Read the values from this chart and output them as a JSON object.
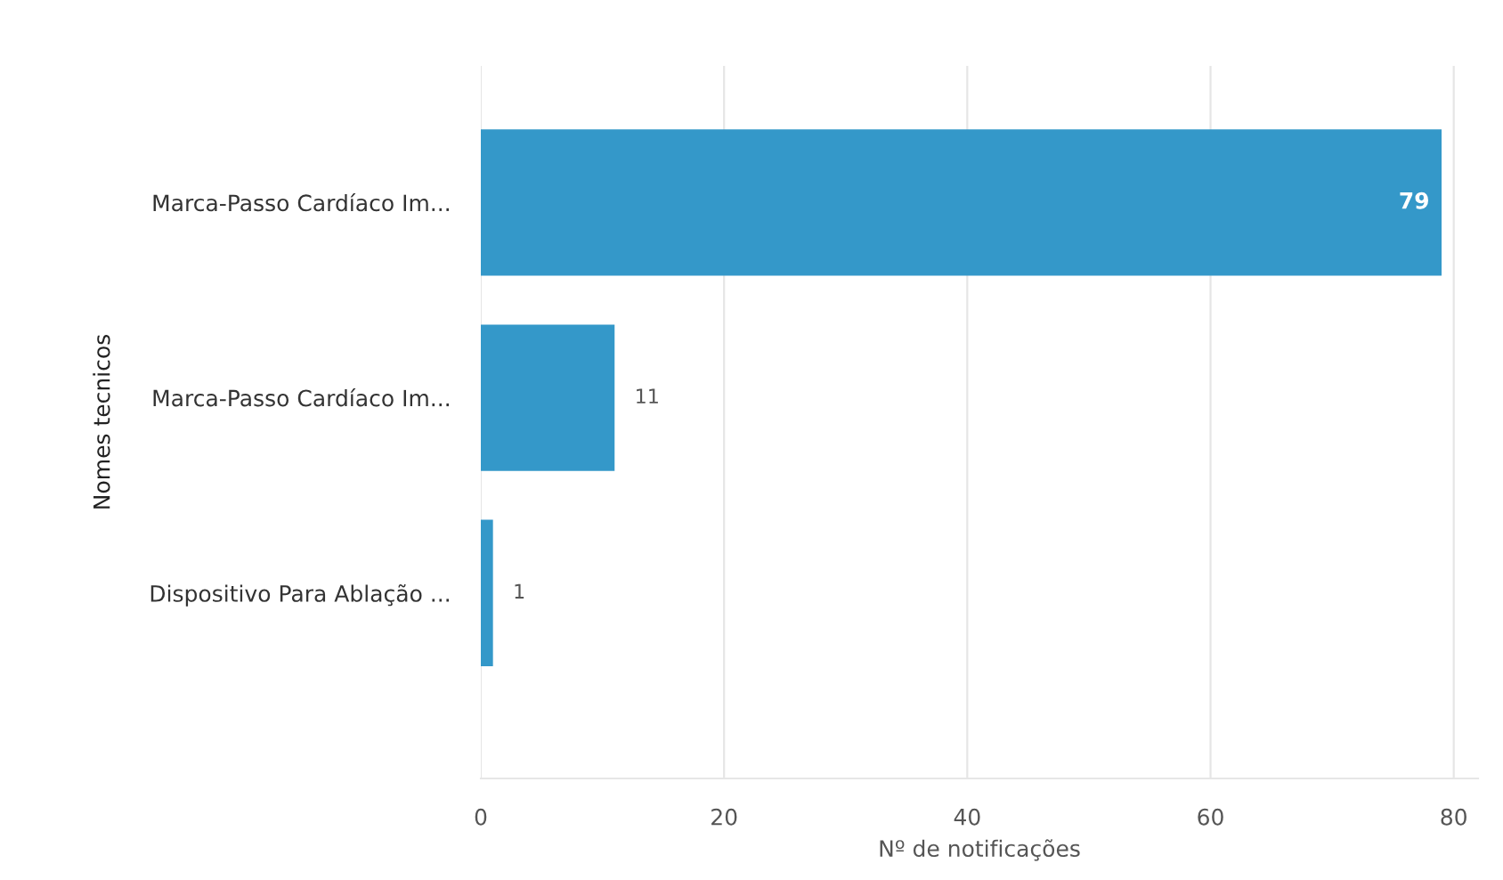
{
  "chart_data": {
    "type": "bar",
    "orientation": "horizontal",
    "xlabel": "Nº de notificações",
    "ylabel": "Nomes tecnicos",
    "categories": [
      "Marca-Passo Cardíaco Im...",
      "Marca-Passo Cardíaco Im...",
      "Dispositivo Para Ablação ..."
    ],
    "values": [
      79,
      11,
      1
    ],
    "color": "#3498c9",
    "xlim": [
      0,
      82
    ],
    "xticks": [
      0,
      20,
      40,
      60,
      80
    ],
    "grid": "x",
    "data_labels": true
  }
}
